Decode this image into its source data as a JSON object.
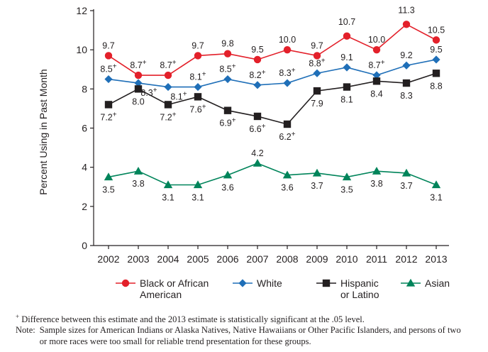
{
  "chart_data": {
    "type": "line",
    "x": [
      2002,
      2003,
      2004,
      2005,
      2006,
      2007,
      2008,
      2009,
      2010,
      2011,
      2012,
      2013
    ],
    "ylabel": "Percent Using in Past Month",
    "xlabel": "",
    "ylim": [
      0,
      12
    ],
    "yticks": [
      0,
      2,
      4,
      6,
      8,
      10,
      12
    ],
    "grid": false,
    "legend_position": "bottom",
    "series": [
      {
        "name": "Black or African American",
        "legend_lines": [
          "Black or African",
          "American"
        ],
        "color": "#e3202a",
        "marker": "circle",
        "values": [
          9.7,
          8.7,
          8.7,
          9.7,
          9.8,
          9.5,
          10.0,
          9.7,
          10.7,
          10.0,
          11.3,
          10.5
        ],
        "labels": [
          "9.7",
          "8.7",
          "8.7",
          "9.7",
          "9.8",
          "9.5",
          "10.0",
          "9.7",
          "10.7",
          "10.0",
          "11.3",
          "10.5"
        ],
        "significant": [
          false,
          true,
          true,
          false,
          false,
          false,
          false,
          false,
          false,
          false,
          false,
          false
        ]
      },
      {
        "name": "White",
        "legend_lines": [
          "White"
        ],
        "color": "#1f6fb8",
        "marker": "diamond",
        "values": [
          8.5,
          8.3,
          8.1,
          8.1,
          8.5,
          8.2,
          8.3,
          8.8,
          9.1,
          8.7,
          9.2,
          9.5
        ],
        "labels": [
          "8.5",
          "8.3",
          "8.1",
          "8.1",
          "8.5",
          "8.2",
          "8.3",
          "8.8",
          "9.1",
          "8.7",
          "9.2",
          "9.5"
        ],
        "significant": [
          true,
          true,
          true,
          true,
          true,
          true,
          true,
          true,
          false,
          true,
          false,
          false
        ]
      },
      {
        "name": "Hispanic or Latino",
        "legend_lines": [
          "Hispanic",
          "or Latino"
        ],
        "color": "#231f20",
        "marker": "square",
        "values": [
          7.2,
          8.0,
          7.2,
          7.6,
          6.9,
          6.6,
          6.2,
          7.9,
          8.1,
          8.4,
          8.3,
          8.8
        ],
        "labels": [
          "7.2",
          "8.0",
          "7.2",
          "7.6",
          "6.9",
          "6.6",
          "6.2",
          "7.9",
          "8.1",
          "8.4",
          "8.3",
          "8.8"
        ],
        "significant": [
          true,
          false,
          true,
          true,
          true,
          true,
          true,
          false,
          false,
          false,
          false,
          false
        ]
      },
      {
        "name": "Asian",
        "legend_lines": [
          "Asian"
        ],
        "color": "#00845a",
        "marker": "triangle",
        "values": [
          3.5,
          3.8,
          3.1,
          3.1,
          3.6,
          4.2,
          3.6,
          3.7,
          3.5,
          3.8,
          3.7,
          3.1
        ],
        "labels": [
          "3.5",
          "3.8",
          "3.1",
          "3.1",
          "3.6",
          "4.2",
          "3.6",
          "3.7",
          "3.5",
          "3.8",
          "3.7",
          "3.1"
        ],
        "significant": [
          false,
          false,
          false,
          false,
          false,
          false,
          false,
          false,
          false,
          false,
          false,
          false
        ]
      }
    ],
    "significance_marker": "+"
  },
  "footnotes": {
    "significance_symbol": "+",
    "significance_text": "Difference between this estimate and the 2013 estimate is statistically significant at the .05 level.",
    "note_label": "Note:",
    "note_text": "Sample sizes for American Indians or Alaska Natives, Native Hawaiians or Other Pacific Islanders, and persons of two or more races were too small for reliable trend presentation for these groups."
  }
}
